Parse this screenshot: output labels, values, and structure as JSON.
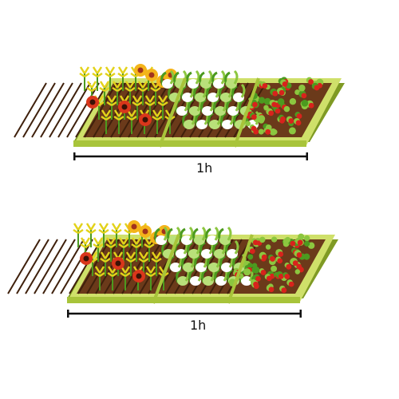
{
  "farms": [
    {
      "duration_label": "1h",
      "crops": [
        "sunflower",
        "cabbage",
        "tomato"
      ]
    },
    {
      "duration_label": "1h",
      "crops": [
        "sunflower",
        "cabbage",
        "tomato"
      ]
    }
  ],
  "colors": {
    "soil": "#6b3a1a",
    "soil_dark": "#3f200c",
    "frame": "#a8c43a",
    "frame_light": "#cfe06a",
    "frame_dark": "#7f9a24",
    "leaf": "#4c9a1f",
    "leaf_light": "#8cc63f",
    "wheat": "#e3d21a",
    "sunflower_petal": "#f4b41a",
    "poppy": "#d9361b",
    "cabbage": "#b9e07a",
    "cabbage_white": "#ffffff",
    "tomato": "#d8231c",
    "arrow": "#111111"
  },
  "icons": [
    "sunflower-icon",
    "cabbage-icon",
    "tomato-icon",
    "duration-arrow-icon"
  ]
}
